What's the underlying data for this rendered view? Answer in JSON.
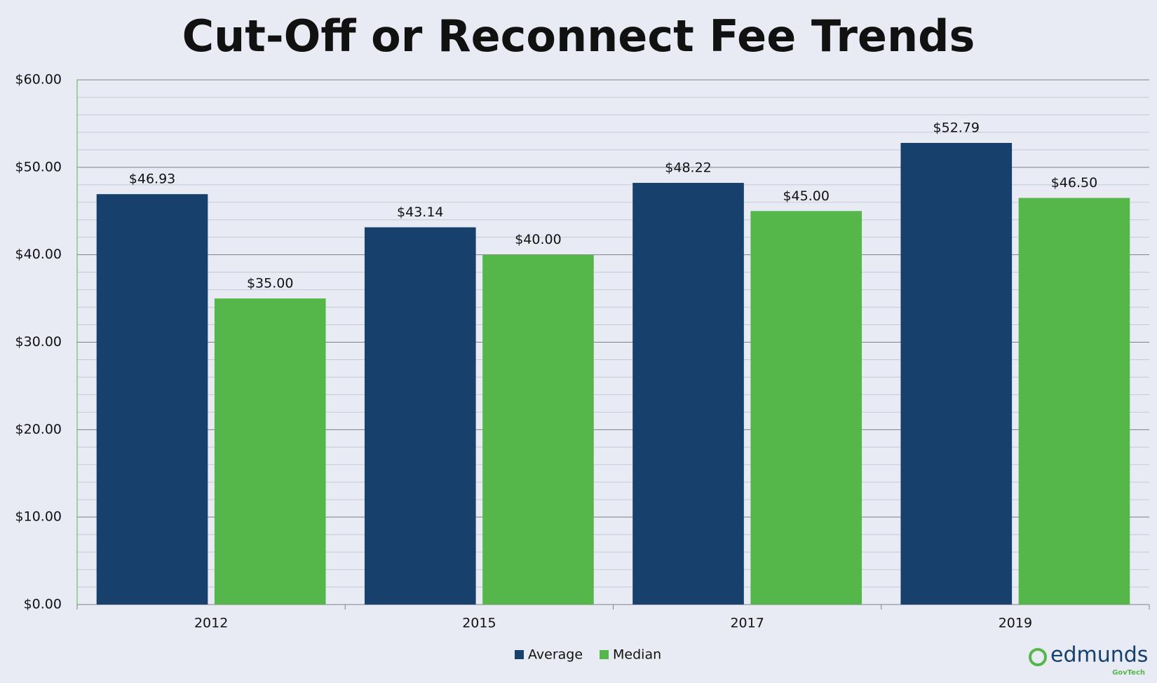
{
  "chart_data": {
    "type": "bar",
    "title": "Cut-Off or Reconnect Fee Trends",
    "categories": [
      "2012",
      "2015",
      "2017",
      "2019"
    ],
    "series": [
      {
        "name": "Average",
        "color": "#17406d",
        "values": [
          46.93,
          43.14,
          48.22,
          52.79
        ],
        "value_labels": [
          "$46.93",
          "$43.14",
          "$48.22",
          "$52.79"
        ]
      },
      {
        "name": "Median",
        "color": "#55b74a",
        "values": [
          35,
          40,
          45,
          46.5
        ],
        "value_labels": [
          "$35.00",
          "$40.00",
          "$45.00",
          "$46.50"
        ]
      }
    ],
    "ylim": [
      0,
      60
    ],
    "yticks": [
      {
        "value": 0,
        "label": "$0.00"
      },
      {
        "value": 10,
        "label": "$10.00"
      },
      {
        "value": 20,
        "label": "$20.00"
      },
      {
        "value": 30,
        "label": "$30.00"
      },
      {
        "value": 40,
        "label": "$40.00"
      },
      {
        "value": 50,
        "label": "$50.00"
      },
      {
        "value": 60,
        "label": "$60.00"
      }
    ],
    "minor_yticks": [
      2,
      4,
      6,
      8,
      12,
      14,
      16,
      18,
      22,
      24,
      26,
      28,
      32,
      34,
      36,
      38,
      42,
      44,
      46,
      48,
      52,
      54,
      56,
      58
    ],
    "grid": true,
    "legend": "bottom"
  },
  "logo": {
    "name": "edmunds",
    "tagline": "GovTech"
  }
}
